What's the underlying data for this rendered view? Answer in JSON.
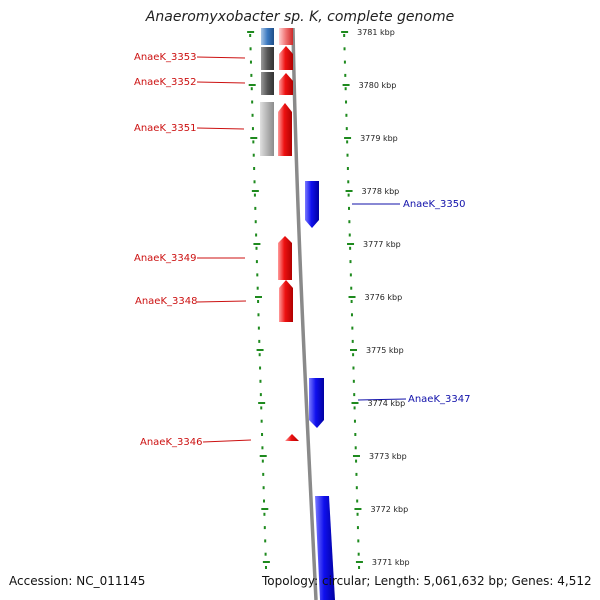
{
  "title": "Anaeromyxobacter sp. K, complete genome",
  "footer": {
    "accession": "Accession: NC_011145",
    "summary": "Topology: circular; Length: 5,061,632 bp; Genes: 4,512"
  },
  "colors": {
    "forward_gene": "#e8141c",
    "reverse_gene": "#1a1ae0",
    "label_forward": "#cc1111",
    "label_reverse": "#1111aa",
    "scale_dots": "#1e8a1e",
    "backbone": "#8a8a8a",
    "feature_dark": "#555555",
    "feature_light": "#bbbbbb",
    "feature_blue": "#3a78c0"
  },
  "scale": {
    "unit": "kbp",
    "ticks": [
      3781,
      3780,
      3779,
      3778,
      3777,
      3776,
      3775,
      3774,
      3773,
      3772,
      3771
    ]
  },
  "genes": [
    {
      "name": "AnaeK_3353",
      "strand": "forward"
    },
    {
      "name": "AnaeK_3352",
      "strand": "forward"
    },
    {
      "name": "AnaeK_3351",
      "strand": "forward"
    },
    {
      "name": "AnaeK_3350",
      "strand": "reverse"
    },
    {
      "name": "AnaeK_3349",
      "strand": "forward"
    },
    {
      "name": "AnaeK_3348",
      "strand": "forward"
    },
    {
      "name": "AnaeK_3347",
      "strand": "reverse"
    },
    {
      "name": "AnaeK_3346",
      "strand": "forward"
    }
  ]
}
